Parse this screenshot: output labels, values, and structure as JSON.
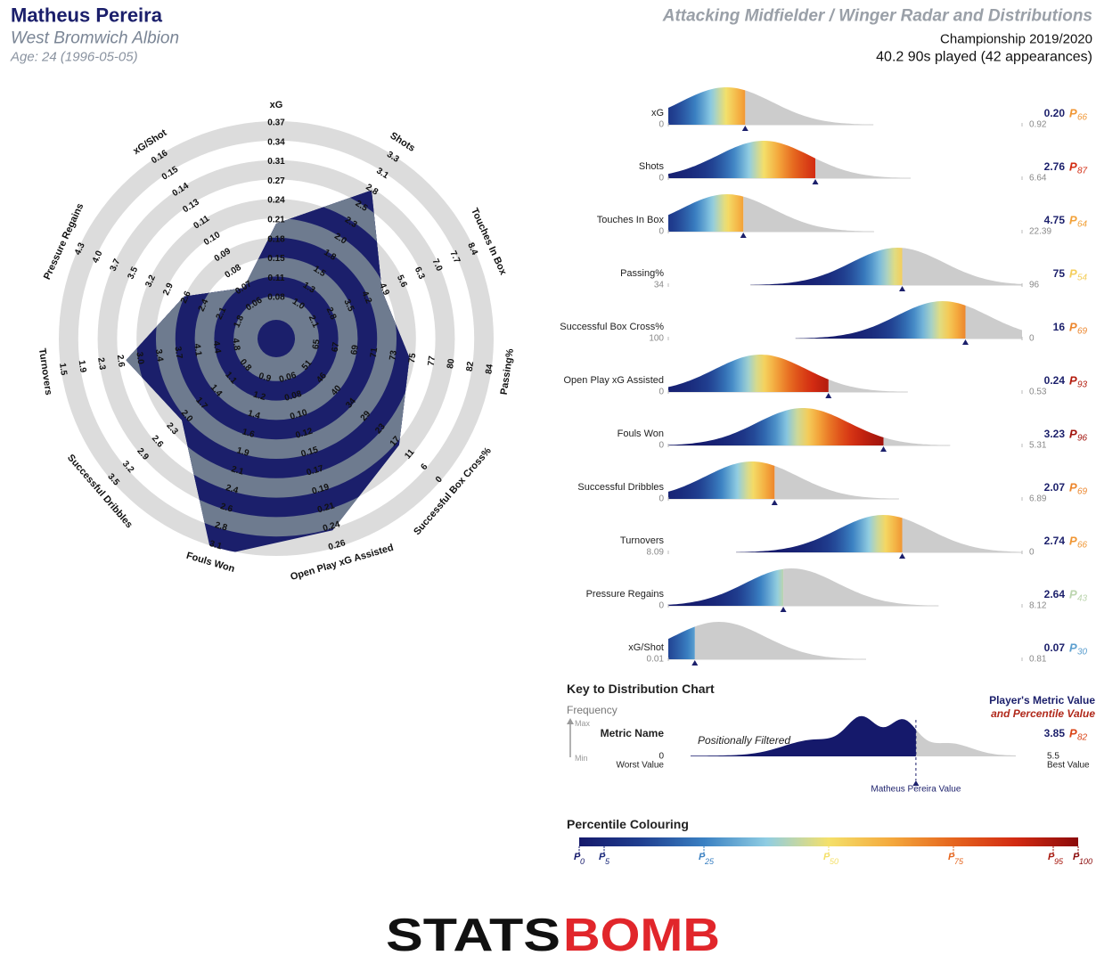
{
  "header": {
    "name": "Matheus Pereira",
    "club": "West Bromwich Albion",
    "age": "Age: 24 (1996-05-05)",
    "title": "Attacking Midfielder / Winger Radar and Distributions",
    "competition": "Championship 2019/2020",
    "played": "40.2 90s played (42 appearances)"
  },
  "chart_data": [
    {
      "type": "radar",
      "axes": [
        {
          "name": "xG",
          "value": 0.2,
          "ticks": [
            0.08,
            0.11,
            0.15,
            0.18,
            0.21,
            0.24,
            0.27,
            0.31,
            0.34,
            0.37
          ]
        },
        {
          "name": "Shots",
          "value": 2.76,
          "ticks": [
            {
              "value": 1.0,
              "label": "1.0"
            },
            1.3,
            1.5,
            1.8,
            {
              "value": 2.0,
              "label": "2.0"
            },
            2.3,
            2.5,
            2.8,
            3.1,
            3.3
          ]
        },
        {
          "name": "Touches In Box",
          "value": 4.75,
          "ticks": [
            2.1,
            2.8,
            3.5,
            4.2,
            4.9,
            5.6,
            6.3,
            {
              "value": 7.0,
              "label": "7.0"
            },
            7.7,
            8.4
          ]
        },
        {
          "name": "Passing%",
          "value": 75,
          "ticks": [
            65,
            67,
            69,
            71,
            73,
            75,
            77,
            80,
            82,
            84
          ]
        },
        {
          "name": "Successful Box Cross%",
          "value": 16,
          "ticks": [
            51,
            46,
            40,
            34,
            29,
            23,
            17,
            11,
            6,
            0
          ]
        },
        {
          "name": "Open Play xG Assisted",
          "value": 0.24,
          "ticks": [
            0.06,
            0.08,
            {
              "value": 0.1,
              "label": "0.10"
            },
            0.12,
            0.15,
            0.17,
            0.19,
            0.21,
            0.24,
            0.26
          ]
        },
        {
          "name": "Fouls Won",
          "value": 3.23,
          "ticks": [
            0.9,
            1.2,
            1.4,
            1.6,
            1.9,
            2.1,
            2.4,
            2.6,
            2.8,
            3.1
          ]
        },
        {
          "name": "Successful Dribbles",
          "value": 2.07,
          "ticks": [
            0.8,
            1.1,
            1.4,
            1.7,
            {
              "value": 2.0,
              "label": "2.0"
            },
            2.3,
            2.6,
            2.9,
            3.2,
            3.5
          ]
        },
        {
          "name": "Turnovers",
          "value": 2.74,
          "ticks": [
            4.8,
            4.4,
            4.1,
            3.7,
            3.4,
            {
              "value": 3.0,
              "label": "3.0"
            },
            2.6,
            2.3,
            1.9,
            1.5
          ]
        },
        {
          "name": "Pressure Regains",
          "value": 2.64,
          "ticks": [
            1.8,
            2.1,
            2.4,
            2.6,
            2.9,
            3.2,
            3.5,
            3.7,
            {
              "value": 4.0,
              "label": "4.0"
            },
            4.3
          ]
        },
        {
          "name": "xG/Shot",
          "value": 0.07,
          "ticks": [
            0.06,
            0.07,
            0.08,
            0.09,
            {
              "value": 0.1,
              "label": "0.10"
            },
            0.11,
            0.13,
            0.14,
            0.15,
            0.16
          ]
        }
      ],
      "colors": {
        "ring": "#dcdcdc",
        "ring_alt": "#ffffff",
        "fill": "#1b1f6b",
        "fill_alt": "#6e7b8f"
      }
    },
    {
      "type": "distribution",
      "percentile_symbol": "P",
      "rows": [
        {
          "name": "xG",
          "worst": 0,
          "best": 0.92,
          "value": 0.2,
          "value_label": "0.20",
          "percentile": 66
        },
        {
          "name": "Shots",
          "worst": 0,
          "best": 6.64,
          "value": 2.76,
          "percentile": 87
        },
        {
          "name": "Touches In Box",
          "worst": 0,
          "best": 22.39,
          "value": 4.75,
          "percentile": 64
        },
        {
          "name": "Passing%",
          "worst": 34,
          "best": 96,
          "value": 75,
          "percentile": 54
        },
        {
          "name": "Successful Box Cross%",
          "worst": 100,
          "best": 0,
          "value": 16,
          "percentile": 69
        },
        {
          "name": "Open Play xG Assisted",
          "worst": 0,
          "best": 0.53,
          "value": 0.24,
          "percentile": 93
        },
        {
          "name": "Fouls Won",
          "worst": 0,
          "best": 5.31,
          "value": 3.23,
          "percentile": 96
        },
        {
          "name": "Successful Dribbles",
          "worst": 0,
          "best": 6.89,
          "value": 2.07,
          "percentile": 69
        },
        {
          "name": "Turnovers",
          "worst": 8.09,
          "best": 0,
          "value": 2.74,
          "percentile": 66
        },
        {
          "name": "Pressure Regains",
          "worst": 0,
          "best": 8.12,
          "value": 2.64,
          "percentile": 43
        },
        {
          "name": "xG/Shot",
          "worst": 0.01,
          "best": 0.81,
          "value": 0.07,
          "percentile": 30
        }
      ],
      "colormap": [
        "#15196b",
        "#203f90",
        "#3a80c2",
        "#8fcde3",
        "#f4e06a",
        "#f4a93d",
        "#e5651e",
        "#d22a12",
        "#8b0a0a"
      ],
      "remainder_color": "#cccccc"
    }
  ],
  "key": {
    "title": "Key to Distribution Chart",
    "frequency": "Frequency",
    "max": "Max",
    "min": "Min",
    "metric_name": "Metric Name",
    "filtered": "Positionally Filtered",
    "worst": 0,
    "worst_label": "Worst Value",
    "best": 5.5,
    "best_label": "Best Value",
    "legend_value": "Player's Metric Value",
    "legend_percentile": "and Percentile Value",
    "value": 3.85,
    "percentile": 82,
    "player_value_label": "Matheus Pereira Value"
  },
  "percentile_colouring": {
    "title": "Percentile Colouring",
    "ticks": [
      0,
      5,
      25,
      50,
      75,
      95,
      100
    ]
  },
  "logo": [
    "STATS",
    "BOMB"
  ]
}
